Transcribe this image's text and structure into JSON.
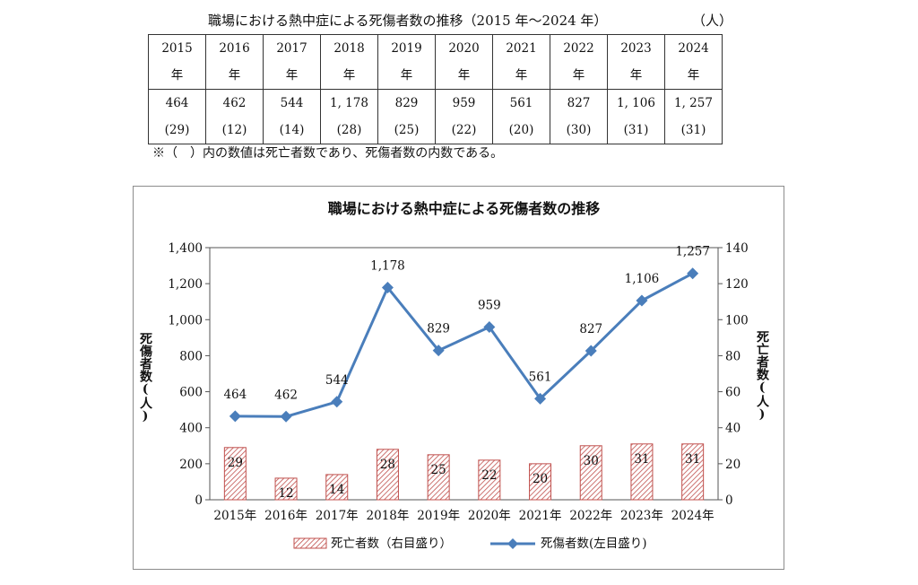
{
  "table": {
    "title": "職場における熱中症による死傷者数の推移（2015 年～2024 年）",
    "unit": "（人）",
    "headers": [
      {
        "y": "2015",
        "n": "年"
      },
      {
        "y": "2016",
        "n": "年"
      },
      {
        "y": "2017",
        "n": "年"
      },
      {
        "y": "2018",
        "n": "年"
      },
      {
        "y": "2019",
        "n": "年"
      },
      {
        "y": "2020",
        "n": "年"
      },
      {
        "y": "2021",
        "n": "年"
      },
      {
        "y": "2022",
        "n": "年"
      },
      {
        "y": "2023",
        "n": "年"
      },
      {
        "y": "2024",
        "n": "年"
      }
    ],
    "values": [
      {
        "cas": "464",
        "dead": "(29)"
      },
      {
        "cas": "462",
        "dead": "(12)"
      },
      {
        "cas": "544",
        "dead": "(14)"
      },
      {
        "cas": "1, 178",
        "dead": "(28)"
      },
      {
        "cas": "829",
        "dead": "(25)"
      },
      {
        "cas": "959",
        "dead": "(22)"
      },
      {
        "cas": "561",
        "dead": "(20)"
      },
      {
        "cas": "827",
        "dead": "(30)"
      },
      {
        "cas": "1, 106",
        "dead": "(31)"
      },
      {
        "cas": "1, 257",
        "dead": "(31)"
      }
    ]
  },
  "note": "※（　）内の数値は死亡者数であり、死傷者数の内数である。",
  "chart_data": {
    "type": "bar+line",
    "title": "職場における熱中症による死傷者数の推移",
    "categories": [
      "2015年",
      "2016年",
      "2017年",
      "2018年",
      "2019年",
      "2020年",
      "2021年",
      "2022年",
      "2023年",
      "2024年"
    ],
    "series": [
      {
        "name": "死亡者数（右目盛り）",
        "type": "bar",
        "axis": "right",
        "values": [
          29,
          12,
          14,
          28,
          25,
          22,
          20,
          30,
          31,
          31
        ],
        "labels": [
          "29",
          "12",
          "14",
          "28",
          "25",
          "22",
          "20",
          "30",
          "31",
          "31"
        ],
        "color": "#c0504d"
      },
      {
        "name": "死傷者数(左目盛り)",
        "type": "line",
        "axis": "left",
        "values": [
          464,
          462,
          544,
          1178,
          829,
          959,
          561,
          827,
          1106,
          1257
        ],
        "labels": [
          "464",
          "462",
          "544",
          "1,178",
          "829",
          "959",
          "561",
          "827",
          "1,106",
          "1,257"
        ],
        "color": "#4a7ebb"
      }
    ],
    "ylabel_left": "死傷者数(人)",
    "ylabel_right": "死亡者数(人)",
    "ylim_left": [
      0,
      1400
    ],
    "ylim_right": [
      0,
      140
    ],
    "yticks_left": [
      "0",
      "200",
      "400",
      "600",
      "800",
      "1,000",
      "1,200",
      "1,400"
    ],
    "yticks_right": [
      "0",
      "20",
      "40",
      "60",
      "80",
      "100",
      "120",
      "140"
    ],
    "grid": false,
    "legend": "bottom"
  }
}
